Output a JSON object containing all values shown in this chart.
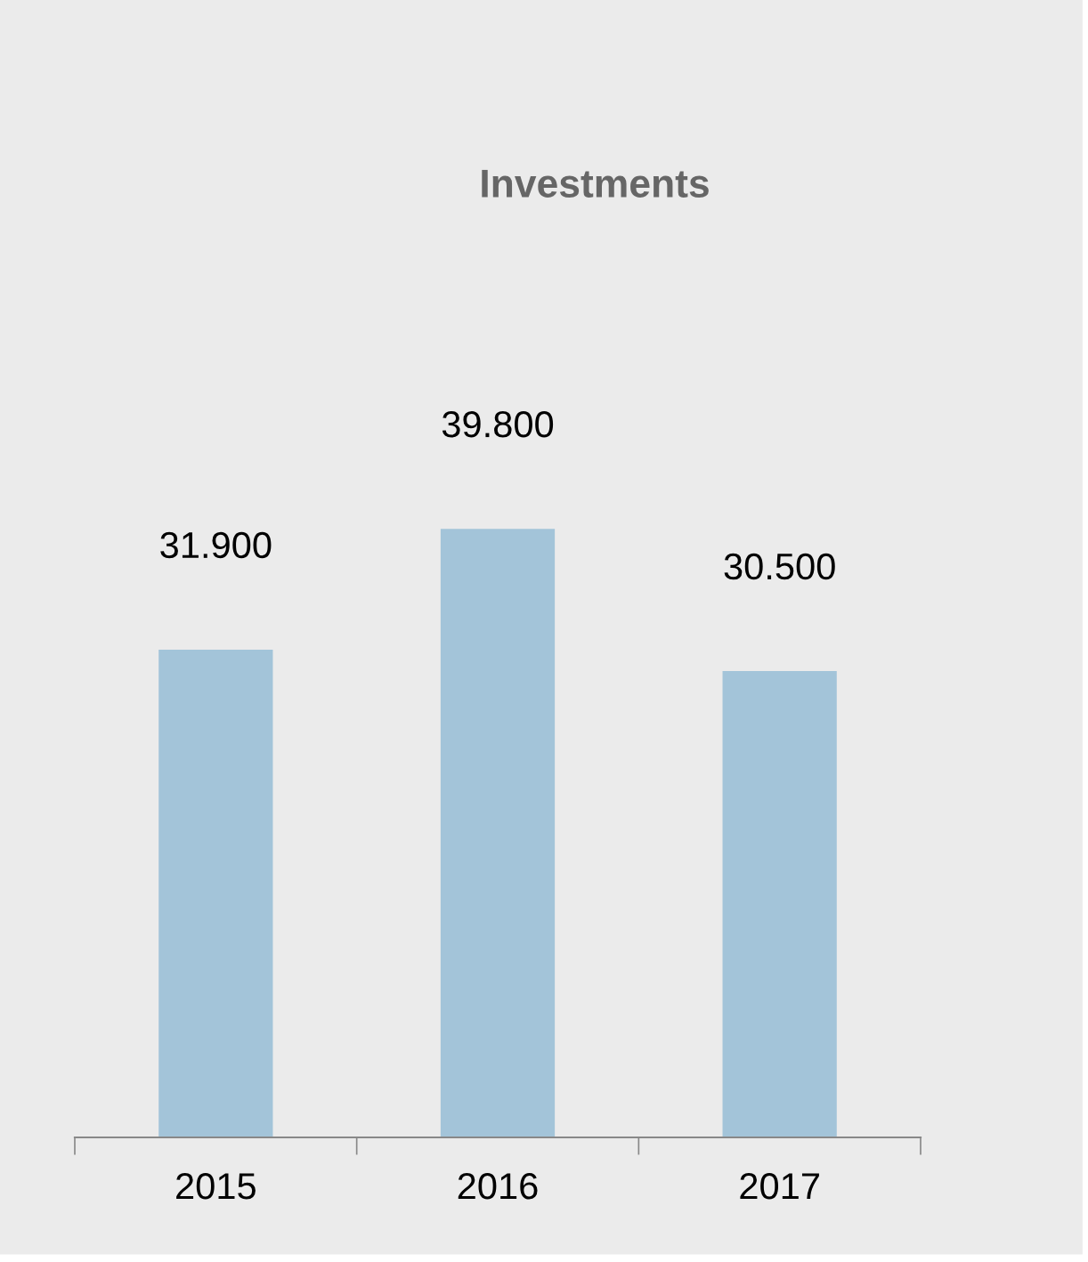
{
  "chart_data": {
    "type": "bar",
    "title": "Investments",
    "categories": [
      "2015",
      "2016",
      "2017"
    ],
    "values": [
      31900,
      39800,
      30500
    ],
    "value_labels": [
      "31.900",
      "39.800",
      "30.500"
    ],
    "color": "#a3c4d9",
    "grid": false,
    "legend": false
  }
}
